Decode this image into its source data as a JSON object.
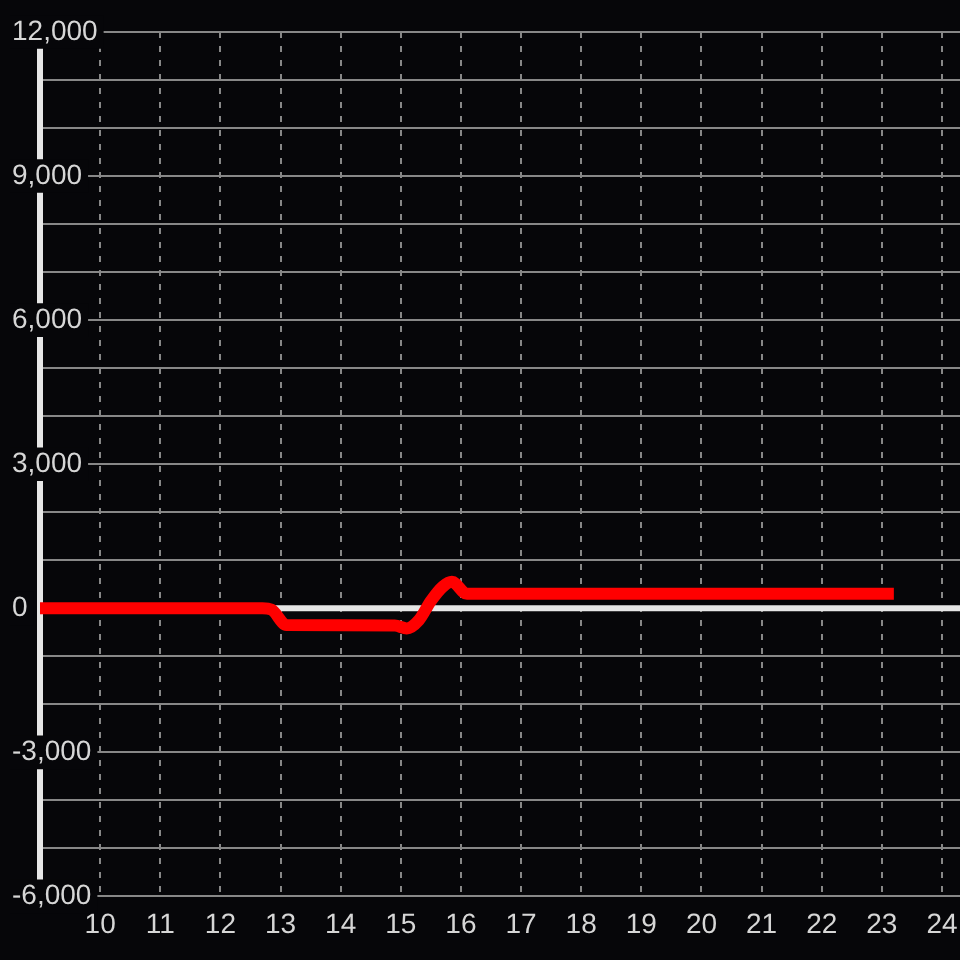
{
  "chart_data": {
    "type": "line",
    "x": [
      9,
      12.7,
      12.85,
      13.1,
      14.9,
      15.1,
      15.3,
      15.5,
      15.7,
      15.85,
      16.1,
      23.2
    ],
    "series": [
      {
        "color": "#ff0000",
        "values": [
          0,
          0,
          -30,
          -350,
          -360,
          -420,
          -250,
          150,
          450,
          550,
          300,
          300
        ]
      }
    ],
    "xlim": [
      9,
      24.3
    ],
    "xticks": [
      10,
      11,
      12,
      13,
      14,
      15,
      16,
      17,
      18,
      19,
      20,
      21,
      22,
      23,
      24
    ],
    "ylim": [
      -6000,
      12000
    ],
    "yticks": [
      {
        "value": -6000,
        "label": "-6,000"
      },
      {
        "value": -5000,
        "label": null
      },
      {
        "value": -4000,
        "label": null
      },
      {
        "value": -3000,
        "label": "-3,000"
      },
      {
        "value": -2000,
        "label": null
      },
      {
        "value": -1000,
        "label": null
      },
      0,
      {
        "value": 1000,
        "label": null
      },
      {
        "value": 2000,
        "label": null
      },
      {
        "value": 3000,
        "label": "3,000"
      },
      {
        "value": 4000,
        "label": null
      },
      {
        "value": 5000,
        "label": null
      },
      {
        "value": 6000,
        "label": "6,000"
      },
      {
        "value": 7000,
        "label": null
      },
      {
        "value": 8000,
        "label": null
      },
      {
        "value": 9000,
        "label": "9,000"
      },
      {
        "value": 10000,
        "label": null
      },
      {
        "value": 11000,
        "label": null
      },
      {
        "value": 12000,
        "label": "12,000"
      }
    ],
    "grid": true,
    "marker": "none",
    "line_style": "solid",
    "ref_lines": [
      {
        "axis": "y",
        "value": 0,
        "color": "#e6e6e6"
      }
    ]
  }
}
